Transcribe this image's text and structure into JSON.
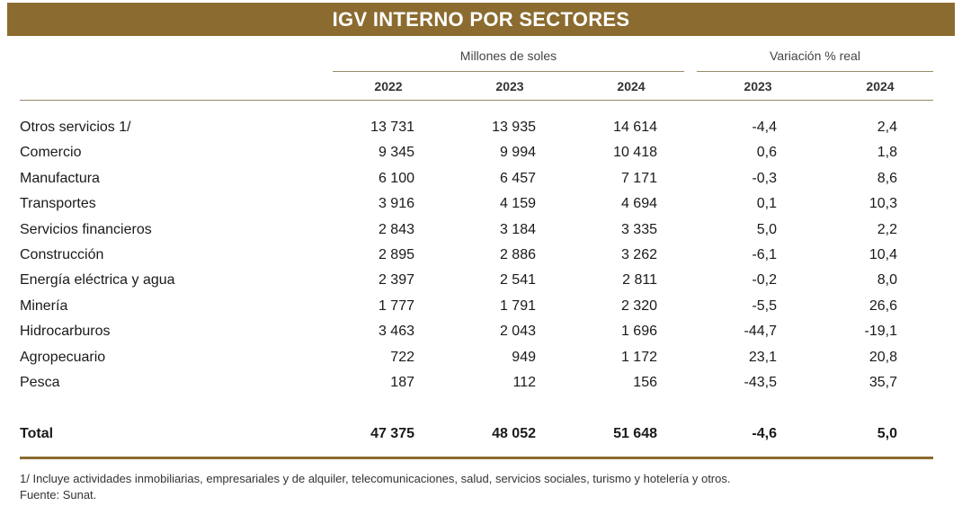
{
  "title": "IGV INTERNO POR SECTORES",
  "headers": {
    "millones": "Millones de soles",
    "variacion": "Variación % real",
    "years": [
      "2022",
      "2023",
      "2024",
      "2023",
      "2024"
    ]
  },
  "rows": [
    {
      "label": "Otros servicios 1/",
      "v2022": "13 731",
      "v2023": "13 935",
      "v2024": "14 614",
      "var2023": "-4,4",
      "var2024": "2,4"
    },
    {
      "label": "Comercio",
      "v2022": "9 345",
      "v2023": "9 994",
      "v2024": "10 418",
      "var2023": "0,6",
      "var2024": "1,8"
    },
    {
      "label": "Manufactura",
      "v2022": "6 100",
      "v2023": "6 457",
      "v2024": "7 171",
      "var2023": "-0,3",
      "var2024": "8,6"
    },
    {
      "label": "Transportes",
      "v2022": "3 916",
      "v2023": "4 159",
      "v2024": "4 694",
      "var2023": "0,1",
      "var2024": "10,3"
    },
    {
      "label": "Servicios financieros",
      "v2022": "2 843",
      "v2023": "3 184",
      "v2024": "3 335",
      "var2023": "5,0",
      "var2024": "2,2"
    },
    {
      "label": "Construcción",
      "v2022": "2 895",
      "v2023": "2 886",
      "v2024": "3 262",
      "var2023": "-6,1",
      "var2024": "10,4"
    },
    {
      "label": "Energía eléctrica y agua",
      "v2022": "2 397",
      "v2023": "2 541",
      "v2024": "2 811",
      "var2023": "-0,2",
      "var2024": "8,0"
    },
    {
      "label": "Minería",
      "v2022": "1 777",
      "v2023": "1 791",
      "v2024": "2 320",
      "var2023": "-5,5",
      "var2024": "26,6"
    },
    {
      "label": "Hidrocarburos",
      "v2022": "3 463",
      "v2023": "2 043",
      "v2024": "1 696",
      "var2023": "-44,7",
      "var2024": "-19,1"
    },
    {
      "label": "Agropecuario",
      "v2022": "722",
      "v2023": "949",
      "v2024": "1 172",
      "var2023": "23,1",
      "var2024": "20,8"
    },
    {
      "label": "Pesca",
      "v2022": "187",
      "v2023": "112",
      "v2024": "156",
      "var2023": "-43,5",
      "var2024": "35,7"
    }
  ],
  "total": {
    "label": "Total",
    "v2022": "47 375",
    "v2023": "48 052",
    "v2024": "51 648",
    "var2023": "-4,6",
    "var2024": "5,0"
  },
  "footnote": "1/ Incluye actividades inmobiliarias, empresariales y de alquiler, telecomunicaciones, salud, servicios sociales, turismo y hotelería y otros.",
  "source": "Fuente: Sunat.",
  "colors": {
    "accent": "#8b6b2f"
  }
}
